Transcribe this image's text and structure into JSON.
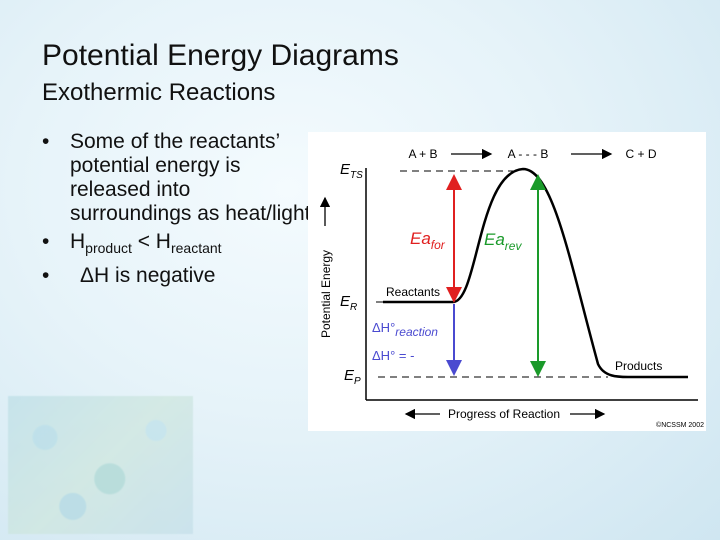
{
  "slide": {
    "title": "Potential Energy Diagrams",
    "subtitle": "Exothermic Reactions"
  },
  "bullets": [
    "Some of the reactants’ potential energy is released into surroundings as heat/light",
    {
      "h1": "H",
      "sub1": "product",
      "mid": " < H",
      "sub2": "reactant"
    },
    "ΔH is negative"
  ],
  "diagram": {
    "stages": [
      "A + B",
      "A - - - B",
      "C + D"
    ],
    "y_axis": "Potential Energy",
    "x_axis": "Progress of Reaction",
    "levels": {
      "ets": "E",
      "ets_sub": "TS",
      "er": "E",
      "er_sub": "R",
      "ep": "E",
      "ep_sub": "P"
    },
    "labels": {
      "reactants": "Reactants",
      "products": "Products",
      "ea_for": "Ea",
      "ea_for_sub": "for",
      "ea_rev": "Ea",
      "ea_rev_sub": "rev",
      "dh_reaction": "ΔH°",
      "dh_reaction_sub": "reaction",
      "dh_value": "ΔH° = -",
      "copyright": "©NCSSM 2002"
    },
    "colors": {
      "ea_for": "#e02020",
      "ea_rev": "#1a9a2a",
      "dh": "#4a4ad0",
      "curve": "#000000"
    }
  }
}
